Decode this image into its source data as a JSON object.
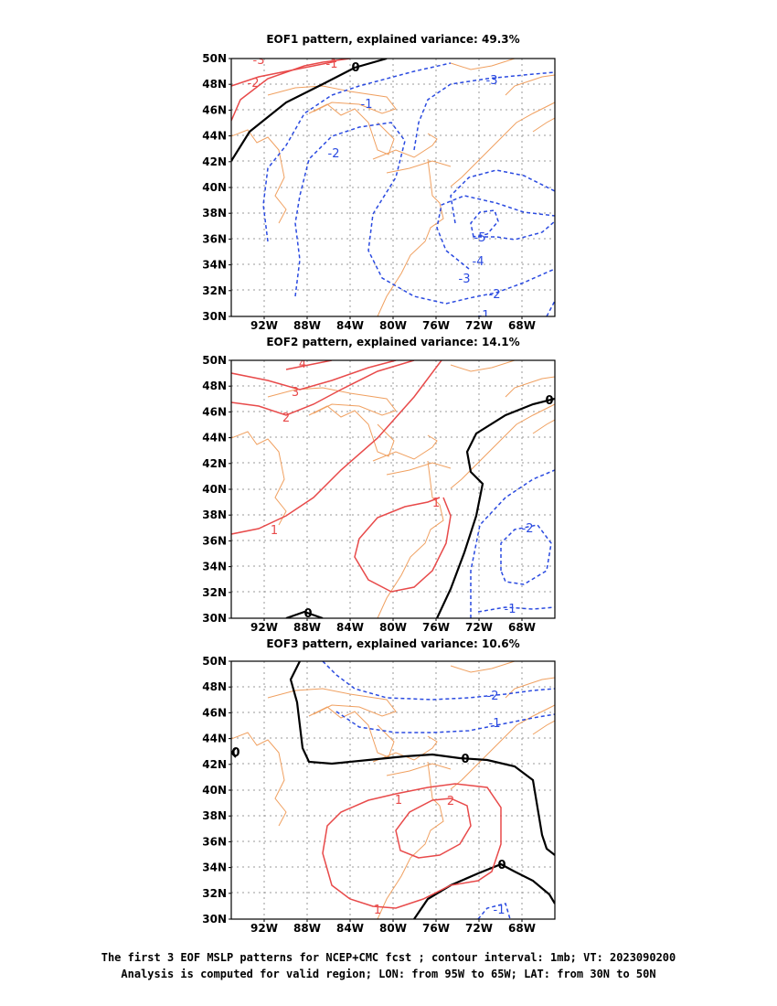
{
  "panels": [
    {
      "title": "EOF1 pattern, explained variance: 49.3%"
    },
    {
      "title": "EOF2 pattern, explained variance: 14.1%"
    },
    {
      "title": "EOF3 pattern, explained variance: 10.6%"
    }
  ],
  "axes": {
    "lat_labels": [
      "50N",
      "48N",
      "46N",
      "44N",
      "42N",
      "40N",
      "38N",
      "36N",
      "34N",
      "32N",
      "30N"
    ],
    "lon_labels": [
      "92W",
      "88W",
      "84W",
      "80W",
      "76W",
      "72W",
      "68W"
    ]
  },
  "contour_labels": {
    "eof1": [
      "-3",
      "-2",
      "-1",
      "0",
      "-1",
      "-3",
      "-2",
      "-5",
      "-4",
      "-3",
      "-2",
      "-1"
    ],
    "eof2": [
      "4",
      "3",
      "2",
      "1",
      "1",
      "0",
      "-2",
      "-1",
      "0"
    ],
    "eof3": [
      "0",
      "-2",
      "-1",
      "0",
      "1",
      "2",
      "1",
      "0",
      "-1"
    ]
  },
  "colors": {
    "positive": "#e84a4a",
    "negative": "#2a4ae0",
    "zero": "#000000",
    "coast": "#f0a060",
    "grid": "#999999"
  },
  "caption": {
    "line1": "The first 3 EOF MSLP patterns for NCEP+CMC fcst ; contour interval: 1mb; VT: 2023090200",
    "line2": "Analysis is computed for valid region; LON: from 95W to 65W; LAT: from 30N to 50N"
  }
}
